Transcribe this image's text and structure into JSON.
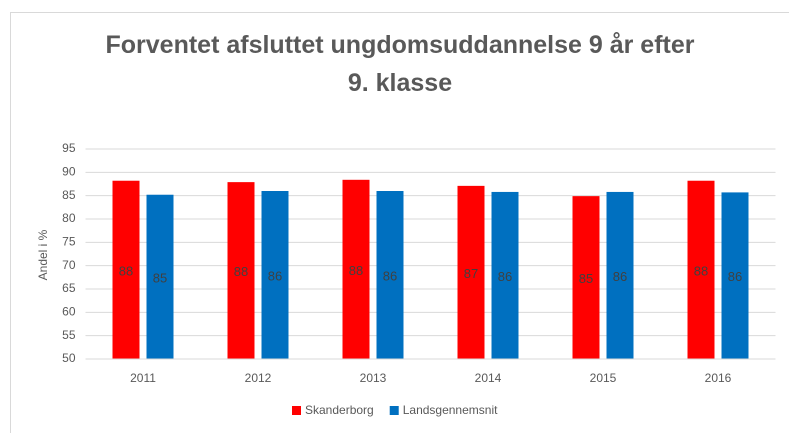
{
  "chart_data": {
    "type": "bar",
    "title": "Forventet afsluttet ungdomsuddannelse 9 år efter 9. klasse",
    "y_label": "Andel i %",
    "categories": [
      "2011",
      "2012",
      "2013",
      "2014",
      "2015",
      "2016"
    ],
    "series": [
      {
        "name": "Skanderborg",
        "color": "#ff0000",
        "values": [
          88.2,
          87.9,
          88.4,
          87.1,
          84.9,
          88.2
        ],
        "value_labels": [
          "88",
          "88",
          "88",
          "87",
          "85",
          "88"
        ]
      },
      {
        "name": "Landsgennemsnit",
        "color": "#0070c0",
        "values": [
          85.2,
          86.0,
          86.0,
          85.8,
          85.8,
          85.7
        ],
        "value_labels": [
          "85",
          "86",
          "86",
          "86",
          "86",
          "86"
        ]
      }
    ],
    "ylim": [
      50,
      95
    ],
    "yticks": [
      50,
      55,
      60,
      65,
      70,
      75,
      80,
      85,
      90,
      95
    ],
    "grid": true,
    "legend": "bottom"
  }
}
